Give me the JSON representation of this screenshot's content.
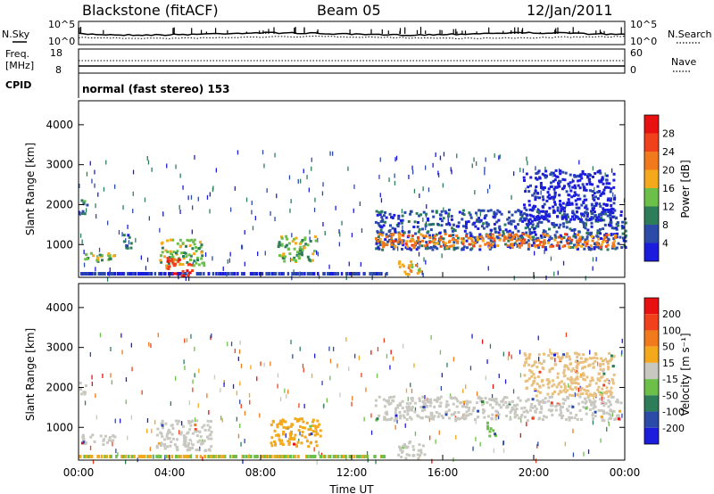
{
  "header": {
    "title": "Blackstone (fitACF)",
    "beam": "Beam 05",
    "date": "12/Jan/2011"
  },
  "strip_labels": {
    "nsky": "N.Sky",
    "nsearch": "N.Search",
    "freq": "Freq.",
    "freq_unit": "[MHz]",
    "nave": "Nave",
    "cpid": "CPID",
    "mode": "normal (fast stereo) 153"
  },
  "chart_data": [
    {
      "type": "line",
      "name": "noise-panel",
      "left_ticks": [
        "10^5",
        "10^0"
      ],
      "right_ticks": [
        "10^5",
        "10^0"
      ]
    },
    {
      "type": "line",
      "name": "freq-nave-panel",
      "left_ticks": [
        "18",
        "8"
      ],
      "right_ticks": [
        "60",
        "0"
      ]
    },
    {
      "type": "heatmap",
      "name": "power-panel",
      "ylabel": "Slant Range [km]",
      "yticks": [
        "4000",
        "3000",
        "2000",
        "1000"
      ],
      "ylim": [
        180,
        4600
      ],
      "xlim": [
        0,
        24
      ],
      "colorbar": {
        "label": "Power [dB]",
        "ticks": [
          "28",
          "24",
          "20",
          "16",
          "12",
          "8",
          "4"
        ],
        "colors": [
          "#1c1cdc",
          "#2c4aa8",
          "#2e7d5a",
          "#6cc04a",
          "#f4a81c",
          "#f07a1c",
          "#f0401c",
          "#e81010"
        ]
      },
      "echo_regions": [
        {
          "t0": 0.0,
          "t1": 0.35,
          "r0": 1800,
          "r1": 2150,
          "level": 2
        },
        {
          "t0": 0.0,
          "t1": 1.6,
          "r0": 600,
          "r1": 850,
          "level": 3
        },
        {
          "t0": 1.9,
          "t1": 2.3,
          "r0": 900,
          "r1": 1300,
          "level": 1
        },
        {
          "t0": 3.5,
          "t1": 5.5,
          "r0": 500,
          "r1": 1150,
          "level": 3
        },
        {
          "t0": 3.8,
          "t1": 5.0,
          "r0": 250,
          "r1": 700,
          "level": 6
        },
        {
          "t0": 8.7,
          "t1": 10.4,
          "r0": 600,
          "r1": 1250,
          "level": 3
        },
        {
          "t0": 13.0,
          "t1": 24.0,
          "r0": 900,
          "r1": 1900,
          "level": 1
        },
        {
          "t0": 13.0,
          "t1": 23.6,
          "r0": 950,
          "r1": 1300,
          "level": 5
        },
        {
          "t0": 14.0,
          "t1": 15.0,
          "r0": 280,
          "r1": 620,
          "level": 4
        },
        {
          "t0": 19.5,
          "t1": 23.5,
          "r0": 1600,
          "r1": 2900,
          "level": 0
        }
      ]
    },
    {
      "type": "heatmap",
      "name": "velocity-panel",
      "ylabel": "Slant Range [km]",
      "yticks": [
        "4000",
        "3000",
        "2000",
        "1000"
      ],
      "ylim": [
        180,
        4600
      ],
      "xlim": [
        0,
        24
      ],
      "xlabel": "Time UT",
      "xticks": [
        "00:00",
        "04:00",
        "08:00",
        "12:00",
        "16:00",
        "20:00",
        "00:00"
      ],
      "colorbar": {
        "label": "Velocity [m s⁻¹]",
        "ticks": [
          "200",
          "100",
          "50",
          "15",
          "-15",
          "-50",
          "-100",
          "-200"
        ],
        "colors": [
          "#1c1cdc",
          "#2c4aa8",
          "#2e7d5a",
          "#6cc04a",
          "#c8c8c0",
          "#f4a81c",
          "#f07a1c",
          "#f0401c",
          "#e81010"
        ]
      },
      "echo_regions": [
        {
          "t0": 0.0,
          "t1": 0.3,
          "r0": 1800,
          "r1": 2150,
          "cls": "gray"
        },
        {
          "t0": 0.0,
          "t1": 1.6,
          "r0": 600,
          "r1": 850,
          "cls": "gray"
        },
        {
          "t0": 3.4,
          "t1": 5.8,
          "r0": 450,
          "r1": 1200,
          "cls": "gray"
        },
        {
          "t0": 8.4,
          "t1": 10.6,
          "r0": 550,
          "r1": 1250,
          "cls": "orange"
        },
        {
          "t0": 13.0,
          "t1": 23.8,
          "r0": 1200,
          "r1": 1800,
          "cls": "gray"
        },
        {
          "t0": 14.0,
          "t1": 15.2,
          "r0": 250,
          "r1": 700,
          "cls": "gray"
        },
        {
          "t0": 17.9,
          "t1": 18.3,
          "r0": 800,
          "r1": 1200,
          "cls": "green"
        },
        {
          "t0": 19.5,
          "t1": 23.5,
          "r0": 1800,
          "r1": 2900,
          "cls": "orangelight"
        }
      ]
    }
  ]
}
